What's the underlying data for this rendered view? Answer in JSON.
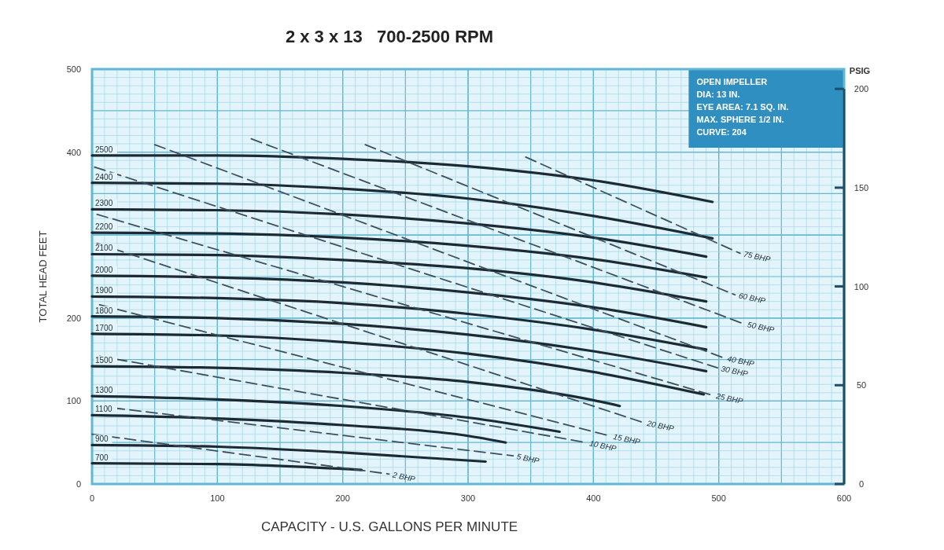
{
  "chart_data": {
    "type": "line",
    "title": "2 x 3 x 13   700-2500 RPM",
    "xlabel": "CAPACITY - U.S. GALLONS PER MINUTE",
    "ylabel": "TOTAL HEAD FEET",
    "y2label": "PSIG",
    "xlim": [
      0,
      600
    ],
    "xticks": [
      0,
      100,
      200,
      300,
      400,
      500,
      600
    ],
    "ylim": [
      0,
      500
    ],
    "yticks": [
      0,
      100,
      200,
      {
        "value": 300,
        "label": null
      },
      400,
      500
    ],
    "y2lim": [
      0,
      210
    ],
    "y2ticks": [
      0,
      50,
      100,
      150,
      200
    ],
    "grid": true,
    "annotations": [
      "OPEN IMPELLER",
      "DIA: 13 IN.",
      "EYE AREA: 7.1 SQ. IN.",
      "MAX. SPHERE 1/2 IN.",
      "CURVE: 204"
    ],
    "series": [
      {
        "name": "2500",
        "color": "#1c2a33",
        "line_style": "solid",
        "x": [
          0,
          100,
          200,
          300,
          400,
          495
        ],
        "values": [
          396,
          396,
          392,
          383,
          366,
          340
        ]
      },
      {
        "name": "2400",
        "color": "#1c2a33",
        "line_style": "solid",
        "x": [
          0,
          100,
          200,
          300,
          400,
          495
        ],
        "values": [
          363,
          362,
          356,
          344,
          323,
          296
        ]
      },
      {
        "name": "2300",
        "color": "#1c2a33",
        "line_style": "solid",
        "x": [
          0,
          100,
          200,
          300,
          400,
          490
        ],
        "values": [
          331,
          330,
          325,
          314,
          297,
          274
        ]
      },
      {
        "name": "2200",
        "color": "#1c2a33",
        "line_style": "solid",
        "x": [
          0,
          100,
          200,
          300,
          400,
          490
        ],
        "values": [
          303,
          302,
          297,
          287,
          271,
          249
        ]
      },
      {
        "name": "2100",
        "color": "#1c2a33",
        "line_style": "solid",
        "x": [
          0,
          100,
          200,
          300,
          400,
          490
        ],
        "values": [
          277,
          276,
          270,
          260,
          243,
          220
        ]
      },
      {
        "name": "2000",
        "color": "#1c2a33",
        "line_style": "solid",
        "x": [
          0,
          100,
          200,
          300,
          400,
          490
        ],
        "values": [
          251,
          249,
          243,
          231,
          213,
          189
        ]
      },
      {
        "name": "1900",
        "color": "#1c2a33",
        "line_style": "solid",
        "x": [
          0,
          100,
          200,
          300,
          400,
          490
        ],
        "values": [
          226,
          224,
          218,
          205,
          186,
          162
        ]
      },
      {
        "name": "1800",
        "color": "#1c2a33",
        "line_style": "solid",
        "x": [
          0,
          100,
          200,
          300,
          400,
          490
        ],
        "values": [
          202,
          200,
          193,
          180,
          160,
          136
        ]
      },
      {
        "name": "1700",
        "color": "#1c2a33",
        "line_style": "solid",
        "x": [
          0,
          100,
          200,
          300,
          400,
          488
        ],
        "values": [
          181,
          179,
          171,
          157,
          135,
          108
        ]
      },
      {
        "name": "1500",
        "color": "#1c2a33",
        "line_style": "solid",
        "x": [
          0,
          100,
          200,
          300,
          400,
          421
        ],
        "values": [
          142,
          140,
          134,
          123,
          101,
          94
        ]
      },
      {
        "name": "1300",
        "color": "#1c2a33",
        "line_style": "solid",
        "x": [
          0,
          100,
          200,
          300,
          373
        ],
        "values": [
          106,
          102,
          94,
          80,
          63
        ]
      },
      {
        "name": "1100",
        "color": "#1c2a33",
        "line_style": "solid",
        "x": [
          0,
          100,
          200,
          300,
          330
        ],
        "values": [
          83,
          79,
          71,
          58,
          50
        ]
      },
      {
        "name": "900",
        "color": "#1c2a33",
        "line_style": "solid",
        "x": [
          0,
          100,
          200,
          314
        ],
        "values": [
          47,
          45,
          38,
          27
        ]
      },
      {
        "name": "700",
        "color": "#1c2a33",
        "line_style": "solid",
        "x": [
          0,
          100,
          215
        ],
        "values": [
          25,
          24,
          17
        ]
      },
      {
        "name": "75 BHP",
        "color": "#3d4f5a",
        "line_style": "dashed",
        "x": [
          346,
          517
        ],
        "values": [
          394,
          278
        ]
      },
      {
        "name": "60 BHP",
        "color": "#3d4f5a",
        "line_style": "dashed",
        "x": [
          218,
          513
        ],
        "values": [
          409,
          228
        ]
      },
      {
        "name": "50 BHP",
        "color": "#3d4f5a",
        "line_style": "dashed",
        "x": [
          127,
          520
        ],
        "values": [
          416,
          193
        ]
      },
      {
        "name": "40 BHP",
        "color": "#3d4f5a",
        "line_style": "dashed",
        "x": [
          50,
          504
        ],
        "values": [
          409,
          152
        ]
      },
      {
        "name": "30 BHP",
        "color": "#3d4f5a",
        "line_style": "dashed",
        "x": [
          2,
          499
        ],
        "values": [
          382,
          140
        ]
      },
      {
        "name": "25 BHP",
        "color": "#3d4f5a",
        "line_style": "dashed",
        "x": [
          4,
          495
        ],
        "values": [
          325,
          107
        ]
      },
      {
        "name": "20 BHP",
        "color": "#3d4f5a",
        "line_style": "dashed",
        "x": [
          4,
          440
        ],
        "values": [
          290,
          74
        ]
      },
      {
        "name": "15 BHP",
        "color": "#3d4f5a",
        "line_style": "dashed",
        "x": [
          6,
          413
        ],
        "values": [
          216,
          58
        ]
      },
      {
        "name": "10 BHP",
        "color": "#3d4f5a",
        "line_style": "dashed",
        "x": [
          6,
          394
        ],
        "values": [
          154,
          50
        ]
      },
      {
        "name": "5 BHP",
        "color": "#3d4f5a",
        "line_style": "dashed",
        "x": [
          4,
          336
        ],
        "values": [
          94,
          34
        ]
      },
      {
        "name": "2 BHP",
        "color": "#3d4f5a",
        "line_style": "dashed",
        "x": [
          0,
          237
        ],
        "values": [
          60,
          12
        ]
      }
    ]
  }
}
